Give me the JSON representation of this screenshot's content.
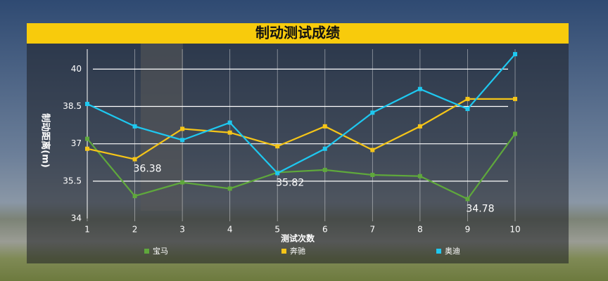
{
  "chart_data": {
    "type": "line",
    "title": "制动测试成绩",
    "x_label": "测试次数",
    "y_label": "制动距离(m)",
    "x": [
      1,
      2,
      3,
      4,
      5,
      6,
      7,
      8,
      9,
      10
    ],
    "xlim": [
      1,
      10
    ],
    "xticks": [
      1,
      2,
      3,
      4,
      5,
      6,
      7,
      8,
      9,
      10
    ],
    "ylim": [
      34,
      40.8
    ],
    "yticks": [
      34,
      35.5,
      37,
      38.5,
      40
    ],
    "grid": true,
    "legend": "bottom",
    "series": [
      {
        "name": "宝马",
        "color": "#5fa83c",
        "values": [
          37.2,
          34.9,
          35.45,
          35.2,
          35.85,
          35.95,
          35.75,
          35.7,
          34.78,
          37.4
        ],
        "value_labels": [
          null,
          null,
          null,
          null,
          null,
          null,
          null,
          null,
          "34.78",
          null
        ]
      },
      {
        "name": "奔驰",
        "color": "#f5c518",
        "values": [
          36.8,
          36.38,
          37.6,
          37.45,
          36.9,
          37.7,
          36.75,
          37.7,
          38.8,
          38.8
        ],
        "value_labels": [
          null,
          "36.38",
          null,
          null,
          null,
          null,
          null,
          null,
          null,
          null
        ]
      },
      {
        "name": "奥迪",
        "color": "#1ec8f0",
        "values": [
          38.6,
          37.7,
          37.15,
          37.85,
          35.82,
          36.8,
          38.25,
          39.2,
          38.4,
          40.6
        ],
        "value_labels": [
          null,
          null,
          null,
          null,
          "35.82",
          null,
          null,
          null,
          null,
          null
        ]
      }
    ]
  }
}
